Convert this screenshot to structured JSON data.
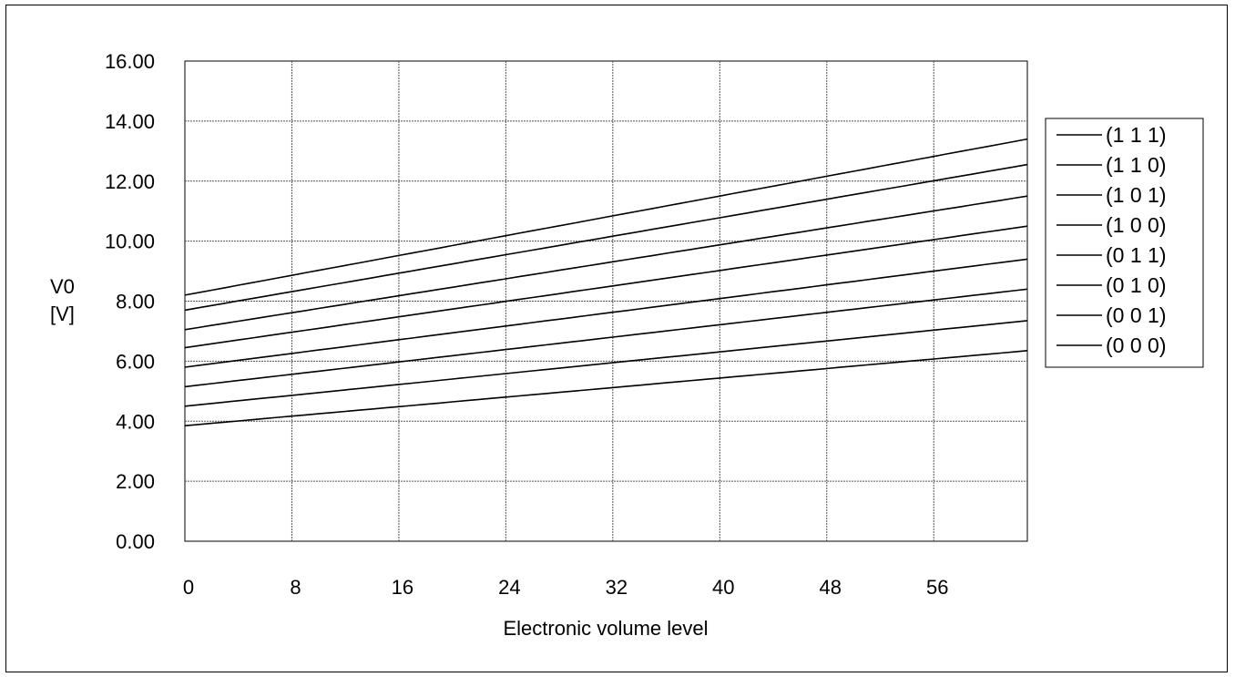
{
  "chart_data": {
    "type": "line",
    "title": "",
    "xlabel": "Electronic volume level",
    "ylabel_lines": [
      "V0",
      "[V]"
    ],
    "xlim": [
      0,
      63
    ],
    "ylim": [
      0,
      16
    ],
    "xticks": [
      0,
      8,
      16,
      24,
      32,
      40,
      48,
      56
    ],
    "xtick_labels": [
      "0",
      "8",
      "16",
      "24",
      "32",
      "40",
      "48",
      "56"
    ],
    "yticks": [
      0,
      2,
      4,
      6,
      8,
      10,
      12,
      14,
      16
    ],
    "ytick_labels": [
      "0.00",
      "2.00",
      "4.00",
      "6.00",
      "8.00",
      "10.00",
      "12.00",
      "14.00",
      "16.00"
    ],
    "grid": true,
    "legend_position": "right",
    "line_color": "#000000",
    "series": [
      {
        "name": "(1 1 1)",
        "x": [
          0,
          63
        ],
        "values": [
          8.2,
          13.4
        ]
      },
      {
        "name": "(1 1 0)",
        "x": [
          0,
          63
        ],
        "values": [
          7.7,
          12.55
        ]
      },
      {
        "name": "(1 0 1)",
        "x": [
          0,
          63
        ],
        "values": [
          7.05,
          11.5
        ]
      },
      {
        "name": "(1 0 0)",
        "x": [
          0,
          63
        ],
        "values": [
          6.45,
          10.5
        ]
      },
      {
        "name": "(0 1 1)",
        "x": [
          0,
          63
        ],
        "values": [
          5.8,
          9.4
        ]
      },
      {
        "name": "(0 1 0)",
        "x": [
          0,
          63
        ],
        "values": [
          5.15,
          8.4
        ]
      },
      {
        "name": "(0 0 1)",
        "x": [
          0,
          63
        ],
        "values": [
          4.5,
          7.35
        ]
      },
      {
        "name": "(0 0 0)",
        "x": [
          0,
          63
        ],
        "values": [
          3.85,
          6.35
        ]
      }
    ]
  }
}
